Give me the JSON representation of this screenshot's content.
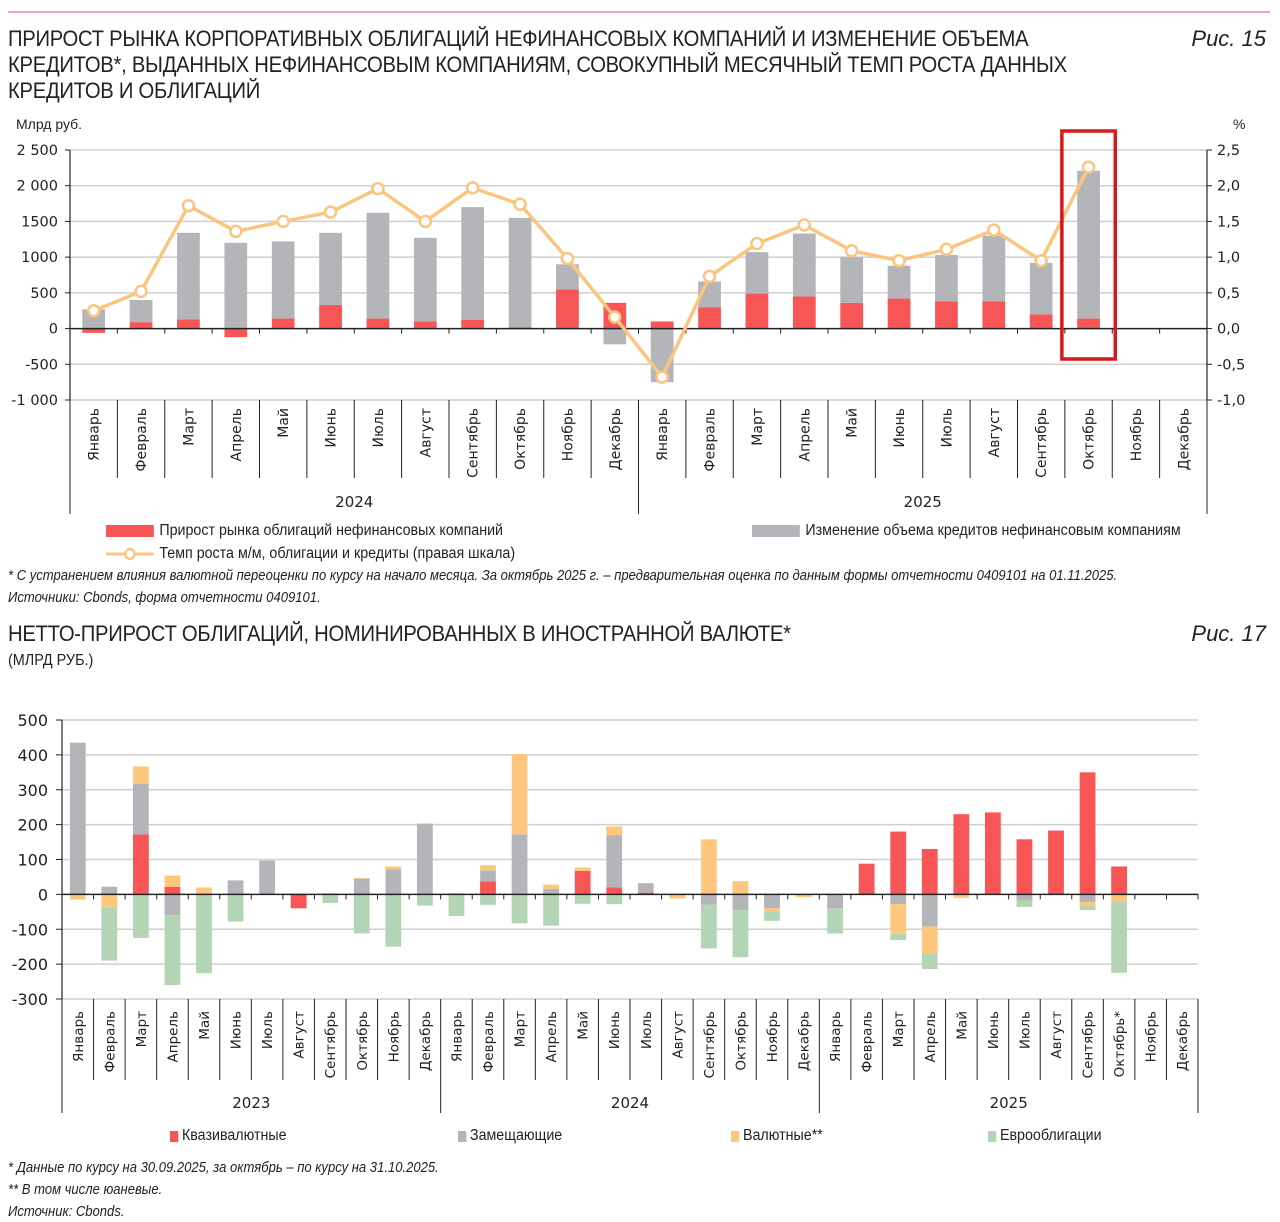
{
  "figure1": {
    "title_lines": [
      "ПРИРОСТ РЫНКА КОРПОРАТИВНЫХ ОБЛИГАЦИЙ НЕФИНАНСОВЫХ КОМПАНИЙ И ИЗМЕНЕНИЕ ОБЪЕМА",
      "КРЕДИТОВ*, ВЫДАННЫХ НЕФИНАНСОВЫМ КОМПАНИЯМ, СОВОКУПНЫЙ МЕСЯЧНЫЙ ТЕМП РОСТА ДАННЫХ",
      "КРЕДИТОВ И ОБЛИГАЦИЙ"
    ],
    "fig_label": "Рис. 15",
    "left_unit": "Млрд руб.",
    "right_unit": "%",
    "footnote": "* С устранением влияния валютной переоценки по курсу на начало месяца. За октябрь 2025 г. – предварительная оценка по данным формы отчетности 0409101 на 01.11.2025.",
    "source": "Источники: Cbonds, форма отчетности 0409101."
  },
  "figure2": {
    "title": "НЕТТО-ПРИРОСТ ОБЛИГАЦИЙ, НОМИНИРОВАННЫХ В ИНОСТРАННОЙ ВАЛЮТЕ*",
    "subtitle": "(МЛРД РУБ.)",
    "fig_label": "Рис. 17",
    "footnote1": "* Данные по курсу на 30.09.2025, за октябрь – по курсу на 31.10.2025.",
    "footnote2": "** В том числе юаневые.",
    "source": "Источник: Cbonds."
  },
  "colors": {
    "red": "#f85557",
    "gray": "#b4b5b8",
    "orange": "#fdc87e",
    "green": "#b3d5b5",
    "line": "#fbc57f",
    "highlight": "#d7191c"
  },
  "chart_data": [
    {
      "type": "bar",
      "stacked": true,
      "title": "Прирост рынка корпоративных облигаций нефинансовых компаний и изменение объема кредитов, выданных нефинансовым компаниям, совокупный месячный темп роста данных кредитов и облигаций",
      "ylabel": "Млрд руб.",
      "y2label": "%",
      "ylim": [
        -1000,
        2500
      ],
      "y_ticks": [
        "2 500",
        "2 000",
        "1500",
        "1000",
        "500",
        "0",
        "-500",
        "-1 000"
      ],
      "y_tick_values": [
        2500,
        2000,
        1500,
        1000,
        500,
        0,
        -500,
        -1000
      ],
      "y2lim": [
        -1.0,
        2.5
      ],
      "y2_ticks": [
        "2,5",
        "2,0",
        "1,5",
        "1,0",
        "0,5",
        "0,0",
        "-0,5",
        "-1,0"
      ],
      "y2_tick_values": [
        2.5,
        2.0,
        1.5,
        1.0,
        0.5,
        0.0,
        -0.5,
        -1.0
      ],
      "grid": true,
      "years": [
        {
          "label": "2024",
          "months": 12
        },
        {
          "label": "2025",
          "months": 12
        }
      ],
      "categories": [
        "Январь",
        "Февраль",
        "Март",
        "Апрель",
        "Май",
        "Июнь",
        "Июль",
        "Август",
        "Сентябрь",
        "Октябрь",
        "Ноябрь",
        "Декабрь",
        "Январь",
        "Февраль",
        "Март",
        "Апрель",
        "Май",
        "Июнь",
        "Июль",
        "Август",
        "Сентябрь",
        "Октябрь",
        "Ноябрь",
        "Декабрь"
      ],
      "series": [
        {
          "name": "Прирост рынка облигаций нефинансовых компаний",
          "kind": "bar",
          "color_key": "red",
          "values": [
            -60,
            90,
            130,
            -120,
            140,
            330,
            140,
            100,
            120,
            20,
            550,
            360,
            100,
            300,
            490,
            450,
            360,
            420,
            380,
            380,
            200,
            140,
            null,
            null
          ]
        },
        {
          "name": "Изменение объема кредитов нефинансовым компаниям",
          "kind": "bar",
          "color_key": "gray",
          "values": [
            270,
            310,
            1210,
            1200,
            1080,
            1010,
            1480,
            1170,
            1580,
            1530,
            350,
            -220,
            -750,
            360,
            580,
            880,
            640,
            460,
            650,
            920,
            720,
            2070,
            null,
            null
          ]
        },
        {
          "name": "Темп роста м/м, облигации и кредиты (правая шкала)",
          "kind": "line",
          "axis": "right",
          "color_key": "line",
          "values": [
            0.25,
            0.52,
            1.72,
            1.36,
            1.5,
            1.63,
            1.96,
            1.5,
            1.97,
            1.74,
            0.98,
            0.16,
            -0.68,
            0.73,
            1.19,
            1.45,
            1.09,
            0.95,
            1.11,
            1.38,
            0.95,
            2.26,
            null,
            null
          ]
        }
      ],
      "highlight": {
        "category_index": 21,
        "label": "Октябрь 2025"
      },
      "legend": [
        {
          "label": "Прирост рынка облигаций нефинансовых компаний",
          "color_key": "red",
          "kind": "bar"
        },
        {
          "label": "Изменение объема кредитов нефинансовым компаниям",
          "color_key": "gray",
          "kind": "bar"
        },
        {
          "label": "Темп роста м/м, облигации и кредиты (правая шкала)",
          "color_key": "line",
          "kind": "line"
        }
      ],
      "legend_position": "bottom"
    },
    {
      "type": "bar",
      "stacked": true,
      "title": "Нетто-прирост облигаций, номинированных в иностранной валюте (млрд руб.)",
      "ylim": [
        -300,
        500
      ],
      "y_ticks": [
        "500",
        "400",
        "300",
        "200",
        "100",
        "0",
        "-100",
        "-200",
        "-300"
      ],
      "y_tick_values": [
        500,
        400,
        300,
        200,
        100,
        0,
        -100,
        -200,
        -300
      ],
      "grid": true,
      "years": [
        {
          "label": "2023",
          "months": 12
        },
        {
          "label": "2024",
          "months": 12
        },
        {
          "label": "2025",
          "months": 12
        }
      ],
      "categories": [
        "Январь",
        "Февраль",
        "Март",
        "Апрель",
        "Май",
        "Июнь",
        "Июль",
        "Август",
        "Сентябрь",
        "Октябрь",
        "Ноябрь",
        "Декабрь",
        "Январь",
        "Февраль",
        "Март",
        "Апрель",
        "Май",
        "Июнь",
        "Июль",
        "Август",
        "Сентябрь",
        "Октябрь",
        "Ноябрь",
        "Декабрь",
        "Январь",
        "Февраль",
        "Март",
        "Апрель",
        "Май",
        "Июнь",
        "Июль",
        "Август",
        "Сентябрь",
        "Октябрь*",
        "Ноябрь",
        "Декабрь"
      ],
      "series": [
        {
          "name": "Квазивалютные",
          "color_key": "red",
          "values": [
            0,
            0,
            172,
            22,
            0,
            0,
            0,
            -40,
            0,
            0,
            0,
            0,
            0,
            37,
            0,
            0,
            67,
            20,
            5,
            0,
            0,
            0,
            0,
            0,
            0,
            88,
            180,
            130,
            230,
            235,
            158,
            183,
            350,
            80,
            null,
            null
          ]
        },
        {
          "name": "Замещающие",
          "color_key": "gray",
          "values": [
            435,
            22,
            145,
            -60,
            0,
            40,
            97,
            0,
            0,
            45,
            72,
            203,
            0,
            32,
            172,
            16,
            0,
            150,
            27,
            0,
            -30,
            -45,
            -40,
            0,
            -40,
            0,
            -28,
            -92,
            0,
            0,
            -18,
            0,
            -22,
            0,
            null,
            null
          ]
        },
        {
          "name": "Валютные**",
          "color_key": "orange",
          "values": [
            -15,
            -38,
            50,
            32,
            20,
            0,
            0,
            0,
            3,
            2,
            8,
            0,
            3,
            15,
            230,
            12,
            10,
            25,
            0,
            -12,
            158,
            38,
            -8,
            -8,
            0,
            0,
            -85,
            -77,
            -10,
            0,
            0,
            0,
            -10,
            -20,
            null,
            null
          ]
        },
        {
          "name": "Еврооблигации",
          "color_key": "green",
          "values": [
            0,
            -152,
            -125,
            -200,
            -226,
            -78,
            0,
            0,
            -25,
            -112,
            -150,
            -32,
            -62,
            -30,
            -83,
            -90,
            -27,
            -28,
            0,
            0,
            -125,
            -135,
            -28,
            0,
            -72,
            0,
            -18,
            -45,
            0,
            0,
            -18,
            0,
            -13,
            -205,
            null,
            null
          ]
        }
      ],
      "legend": [
        {
          "label": "Квазивалютные",
          "color_key": "red"
        },
        {
          "label": "Замещающие",
          "color_key": "gray"
        },
        {
          "label": "Валютные**",
          "color_key": "orange"
        },
        {
          "label": "Еврооблигации",
          "color_key": "green"
        }
      ],
      "legend_position": "bottom"
    }
  ]
}
